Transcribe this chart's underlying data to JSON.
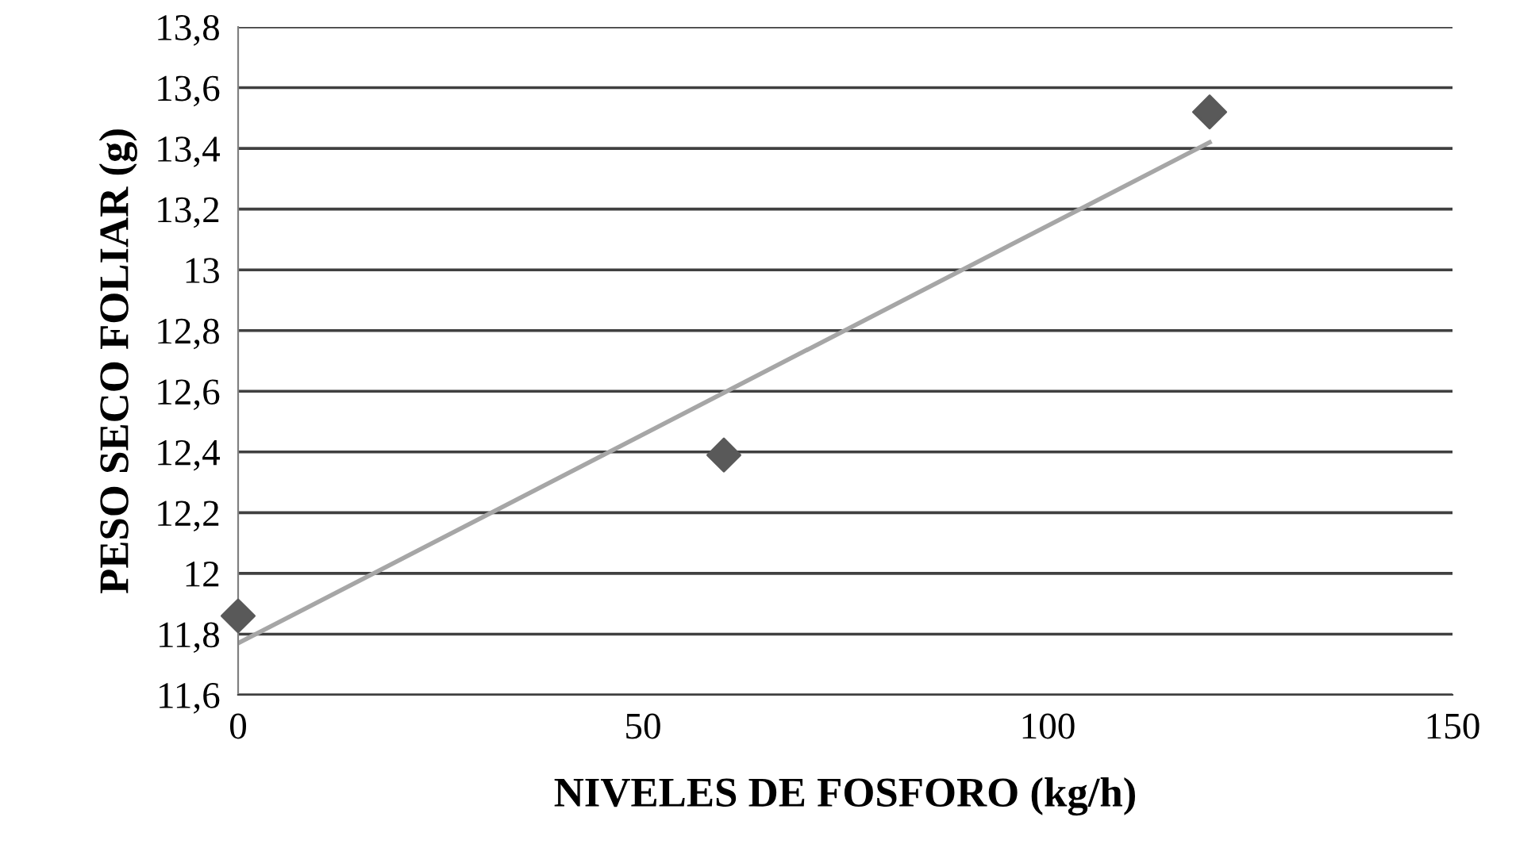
{
  "chart_data": {
    "type": "scatter",
    "xlabel": "NIVELES DE FOSFORO (kg/h)",
    "ylabel": "PESO SECO FOLIAR (g)",
    "series": [
      {
        "color": "#595959",
        "marker": "diamond",
        "x": [
          0,
          60,
          120
        ],
        "values": [
          11.86,
          12.39,
          13.52
        ]
      },
      {
        "type": "line",
        "color": "#a6a6a6",
        "marker": "none",
        "line_style": "solid",
        "x": [
          0,
          120
        ],
        "values": [
          11.77,
          13.42
        ]
      }
    ],
    "xlim": [
      0,
      150
    ],
    "xticks": [
      0,
      50,
      100,
      150
    ],
    "ylim": [
      11.6,
      13.8
    ],
    "yticks": [
      {
        "value": 11.6,
        "label": "11,6"
      },
      {
        "value": 11.8,
        "label": "11,8"
      },
      {
        "value": 12,
        "label": "12"
      },
      {
        "value": 12.2,
        "label": "12,2"
      },
      {
        "value": 12.4,
        "label": "12,4"
      },
      {
        "value": 12.6,
        "label": "12,6"
      },
      {
        "value": 12.8,
        "label": "12,8"
      },
      {
        "value": 13,
        "label": "13"
      },
      {
        "value": 13.2,
        "label": "13,2"
      },
      {
        "value": 13.4,
        "label": "13,4"
      },
      {
        "value": 13.6,
        "label": "13,6"
      },
      {
        "value": 13.8,
        "label": "13,8"
      }
    ],
    "grid": "y",
    "legend": false
  }
}
